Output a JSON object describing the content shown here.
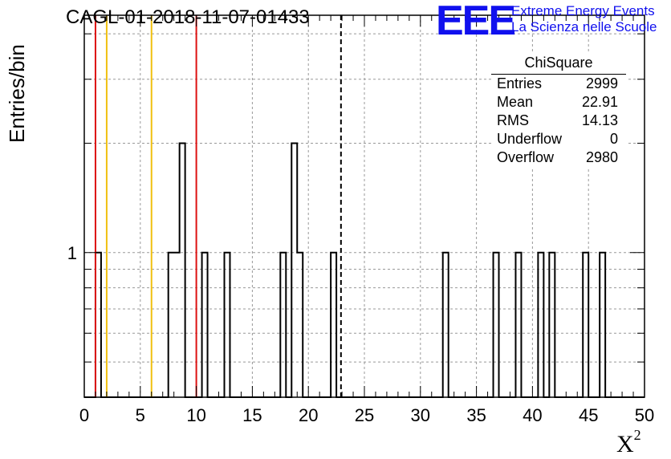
{
  "chart_data": {
    "type": "histogram",
    "title": "CAGL-01-2018-11-07-01433",
    "xlabel": "X",
    "xlabel_sup": "2",
    "ylabel": "Entries/bin",
    "xlim": [
      0,
      50
    ],
    "ylim": [
      0.4,
      4.5
    ],
    "y_scale": "log",
    "grid": true,
    "bin_width": 0.5,
    "x_ticks": [
      "0",
      "5",
      "10",
      "15",
      "20",
      "25",
      "30",
      "35",
      "40",
      "45",
      "50"
    ],
    "y_ticks": [
      "1"
    ],
    "bins": [
      {
        "x": 1.0,
        "value": 1
      },
      {
        "x": 7.5,
        "value": 1
      },
      {
        "x": 8.0,
        "value": 1
      },
      {
        "x": 8.5,
        "value": 2
      },
      {
        "x": 10.5,
        "value": 1
      },
      {
        "x": 12.5,
        "value": 1
      },
      {
        "x": 17.5,
        "value": 1
      },
      {
        "x": 18.5,
        "value": 2
      },
      {
        "x": 19.0,
        "value": 1
      },
      {
        "x": 22.0,
        "value": 1
      },
      {
        "x": 32.0,
        "value": 1
      },
      {
        "x": 36.5,
        "value": 1
      },
      {
        "x": 38.5,
        "value": 1
      },
      {
        "x": 40.5,
        "value": 1
      },
      {
        "x": 41.5,
        "value": 1
      },
      {
        "x": 44.5,
        "value": 1
      },
      {
        "x": 46.0,
        "value": 1
      }
    ],
    "vertical_lines": [
      {
        "x": 1,
        "color": "#dd1111",
        "style": "solid"
      },
      {
        "x": 2,
        "color": "#f0c010",
        "style": "solid"
      },
      {
        "x": 6,
        "color": "#f0c010",
        "style": "solid"
      },
      {
        "x": 10,
        "color": "#dd1111",
        "style": "solid"
      },
      {
        "x": 22.91,
        "color": "#000000",
        "style": "dashed"
      }
    ],
    "stats": {
      "title": "ChiSquare",
      "rows": [
        {
          "label": "Entries",
          "value": "2999"
        },
        {
          "label": "Mean",
          "value": "22.91"
        },
        {
          "label": "RMS",
          "value": "14.13"
        },
        {
          "label": "Underflow",
          "value": "0"
        },
        {
          "label": "Overflow",
          "value": "2980"
        }
      ]
    }
  },
  "logo": {
    "text": "EEE",
    "line1": "Extreme Energy Events",
    "line2": "La Scienza nelle Scuole",
    "color": "#1010ee"
  }
}
